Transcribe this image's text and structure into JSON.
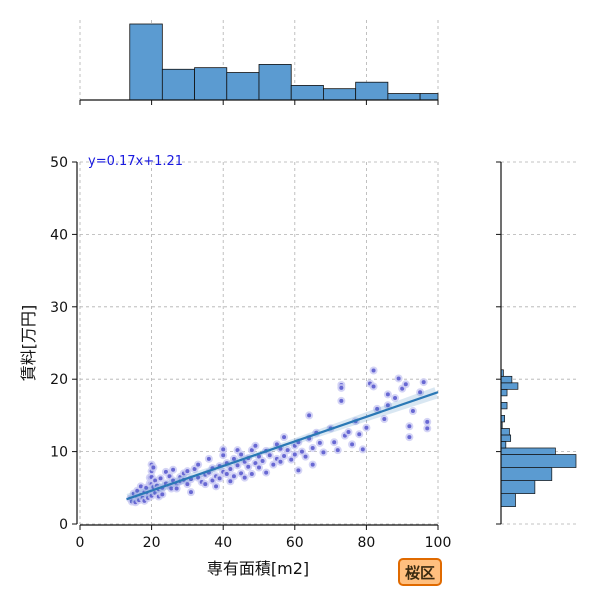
{
  "badge": {
    "label": "桜区"
  },
  "colors": {
    "bar": "#5b9bd1",
    "point": "#5555cc",
    "point_light": "#c9c9f2",
    "line": "#2a78b5",
    "grid": "#b0b0b0",
    "badge_bg": "#ffbf7f",
    "badge_border": "#e06a00",
    "eq_text": "#1a1adf"
  },
  "chart_data": {
    "type": "scatter",
    "xlabel": "専有面積[m2]",
    "ylabel": "賃料[万円]",
    "xlim": [
      0,
      100
    ],
    "ylim": [
      0,
      50
    ],
    "xticks": [
      0,
      20,
      40,
      60,
      80,
      100
    ],
    "yticks": [
      0,
      10,
      20,
      30,
      40,
      50
    ],
    "grid": true,
    "regression": {
      "label": "y=0.17x+1.21",
      "slope": 0.17,
      "intercept": 1.21,
      "x_range": [
        13,
        100
      ]
    },
    "points": [
      [
        14,
        3.5
      ],
      [
        14.5,
        3.1
      ],
      [
        15,
        4.2
      ],
      [
        15.5,
        3.0
      ],
      [
        16,
        3.8
      ],
      [
        16,
        4.6
      ],
      [
        16.5,
        3.3
      ],
      [
        17,
        4.0
      ],
      [
        17,
        5.2
      ],
      [
        17.5,
        3.6
      ],
      [
        18,
        4.4
      ],
      [
        18,
        3.2
      ],
      [
        18.5,
        5.0
      ],
      [
        19,
        4.1
      ],
      [
        19,
        3.6
      ],
      [
        19.5,
        5.6
      ],
      [
        19.5,
        6.4
      ],
      [
        20,
        4.5
      ],
      [
        20,
        5.5
      ],
      [
        20,
        6.5
      ],
      [
        20,
        7.3
      ],
      [
        20,
        8.2
      ],
      [
        20,
        3.9
      ],
      [
        20.5,
        5.1
      ],
      [
        20.5,
        7.8
      ],
      [
        21,
        4.3
      ],
      [
        21,
        6.0
      ],
      [
        21.5,
        5.3
      ],
      [
        22,
        4.8
      ],
      [
        22,
        3.8
      ],
      [
        22.5,
        6.3
      ],
      [
        23,
        5.0
      ],
      [
        23,
        4.1
      ],
      [
        24,
        5.6
      ],
      [
        24,
        7.2
      ],
      [
        25,
        5.2
      ],
      [
        25,
        6.6
      ],
      [
        25.5,
        4.9
      ],
      [
        26,
        6.0
      ],
      [
        26,
        7.5
      ],
      [
        27,
        5.5
      ],
      [
        27,
        4.9
      ],
      [
        28,
        6.5
      ],
      [
        28,
        5.9
      ],
      [
        29,
        7.0
      ],
      [
        29,
        6.1
      ],
      [
        30,
        5.5
      ],
      [
        30,
        7.3
      ],
      [
        31,
        6.2
      ],
      [
        31,
        4.4
      ],
      [
        32,
        7.6
      ],
      [
        33,
        6.4
      ],
      [
        33,
        8.2
      ],
      [
        34,
        5.8
      ],
      [
        35,
        6.8
      ],
      [
        35,
        5.5
      ],
      [
        36,
        7.1
      ],
      [
        36,
        9.0
      ],
      [
        37,
        6.0
      ],
      [
        37,
        7.7
      ],
      [
        38,
        6.6
      ],
      [
        38,
        5.2
      ],
      [
        39,
        8.0
      ],
      [
        39,
        6.3
      ],
      [
        40,
        7.2
      ],
      [
        40,
        9.5
      ],
      [
        40,
        10.3
      ],
      [
        41,
        6.9
      ],
      [
        41,
        8.4
      ],
      [
        42,
        7.6
      ],
      [
        42,
        5.9
      ],
      [
        43,
        9.0
      ],
      [
        43,
        6.6
      ],
      [
        44,
        8.1
      ],
      [
        44,
        10.2
      ],
      [
        45,
        7.0
      ],
      [
        45,
        9.6
      ],
      [
        46,
        8.6
      ],
      [
        46,
        6.4
      ],
      [
        47,
        9.1
      ],
      [
        47,
        7.9
      ],
      [
        48,
        10.2
      ],
      [
        48,
        6.9
      ],
      [
        49,
        8.4
      ],
      [
        49,
        10.8
      ],
      [
        50,
        9.3
      ],
      [
        50,
        7.8
      ],
      [
        51,
        8.7
      ],
      [
        52,
        10.1
      ],
      [
        52,
        7.1
      ],
      [
        53,
        9.5
      ],
      [
        54,
        8.2
      ],
      [
        55,
        11.0
      ],
      [
        55,
        9.0
      ],
      [
        56,
        8.6
      ],
      [
        56,
        10.4
      ],
      [
        57,
        9.4
      ],
      [
        57,
        12.0
      ],
      [
        58,
        10.2
      ],
      [
        59,
        8.9
      ],
      [
        60,
        10.8
      ],
      [
        60,
        9.6
      ],
      [
        61,
        11.3
      ],
      [
        61,
        7.4
      ],
      [
        62,
        10.0
      ],
      [
        63,
        9.3
      ],
      [
        64,
        11.8
      ],
      [
        65,
        10.5
      ],
      [
        65,
        8.2
      ],
      [
        66,
        12.6
      ],
      [
        67,
        11.2
      ],
      [
        68,
        9.9
      ],
      [
        70,
        13.2
      ],
      [
        71,
        11.3
      ],
      [
        72,
        10.2
      ],
      [
        73,
        19.2
      ],
      [
        73,
        18.8
      ],
      [
        74,
        12.2
      ],
      [
        75,
        12.7
      ],
      [
        76,
        11.0
      ],
      [
        77,
        14.2
      ],
      [
        78,
        12.4
      ],
      [
        79,
        10.3
      ],
      [
        80,
        13.3
      ],
      [
        81,
        19.4
      ],
      [
        82,
        21.2
      ],
      [
        82,
        19.0
      ],
      [
        83,
        15.9
      ],
      [
        85,
        14.5
      ],
      [
        86,
        16.4
      ],
      [
        88,
        17.4
      ],
      [
        89,
        20.1
      ],
      [
        90,
        18.7
      ],
      [
        91,
        19.3
      ],
      [
        92,
        12.0
      ],
      [
        93,
        15.6
      ],
      [
        95,
        18.2
      ],
      [
        96,
        19.6
      ],
      [
        97,
        14.1
      ],
      [
        97,
        13.2
      ],
      [
        64,
        15.0
      ],
      [
        73,
        17.0
      ],
      [
        86,
        17.9
      ],
      [
        92,
        13.5
      ]
    ],
    "x_histogram": {
      "bin_edges": [
        13.9,
        23,
        32,
        41,
        50,
        59,
        68,
        77,
        86,
        95,
        100
      ],
      "counts": [
        47,
        19,
        20,
        17,
        22,
        9,
        7,
        11,
        4,
        4
      ]
    },
    "y_histogram": {
      "bin_edges": [
        2.4,
        4.2,
        6.0,
        7.8,
        9.6,
        10.5,
        11.4,
        12.3,
        13.2,
        14.1,
        15.0,
        15.9,
        16.8,
        17.7,
        18.6,
        19.5,
        20.4,
        21.3
      ],
      "counts": [
        12,
        28,
        42,
        62,
        45,
        4,
        8,
        7,
        1,
        3,
        0,
        5,
        0,
        5,
        14,
        9,
        2
      ],
      "note_hidden": ""
    }
  }
}
